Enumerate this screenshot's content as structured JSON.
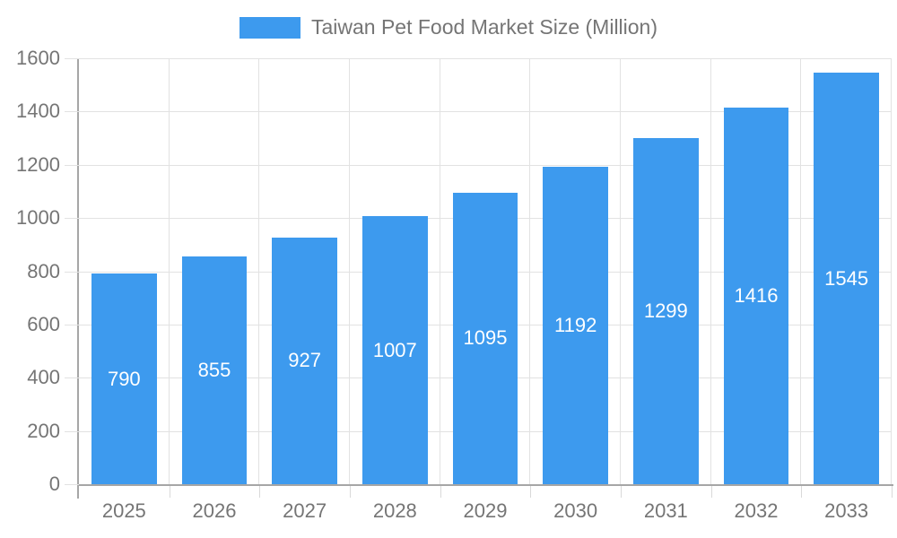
{
  "chart_data": {
    "type": "bar",
    "title": "Taiwan Pet Food Market Size (Million)",
    "categories": [
      "2025",
      "2026",
      "2027",
      "2028",
      "2029",
      "2030",
      "2031",
      "2032",
      "2033"
    ],
    "series": [
      {
        "name": "Taiwan Pet Food Market Size (Million)",
        "values": [
          790,
          855,
          927,
          1007,
          1095,
          1192,
          1299,
          1416,
          1545
        ]
      }
    ],
    "xlabel": "",
    "ylabel": "",
    "ylim": [
      0,
      1600
    ],
    "yticks": [
      0,
      200,
      400,
      600,
      800,
      1000,
      1200,
      1400,
      1600
    ],
    "grid": true,
    "legend_position": "top",
    "bar_value_labels_visible": true,
    "colors": {
      "bar": "#3D9AEE",
      "bar_value_label": "#FFFFFF",
      "axis_text": "#757575",
      "gridline": "#E2E2E2",
      "axis_line": "#A6A6A6",
      "background": "#FFFFFF"
    }
  }
}
